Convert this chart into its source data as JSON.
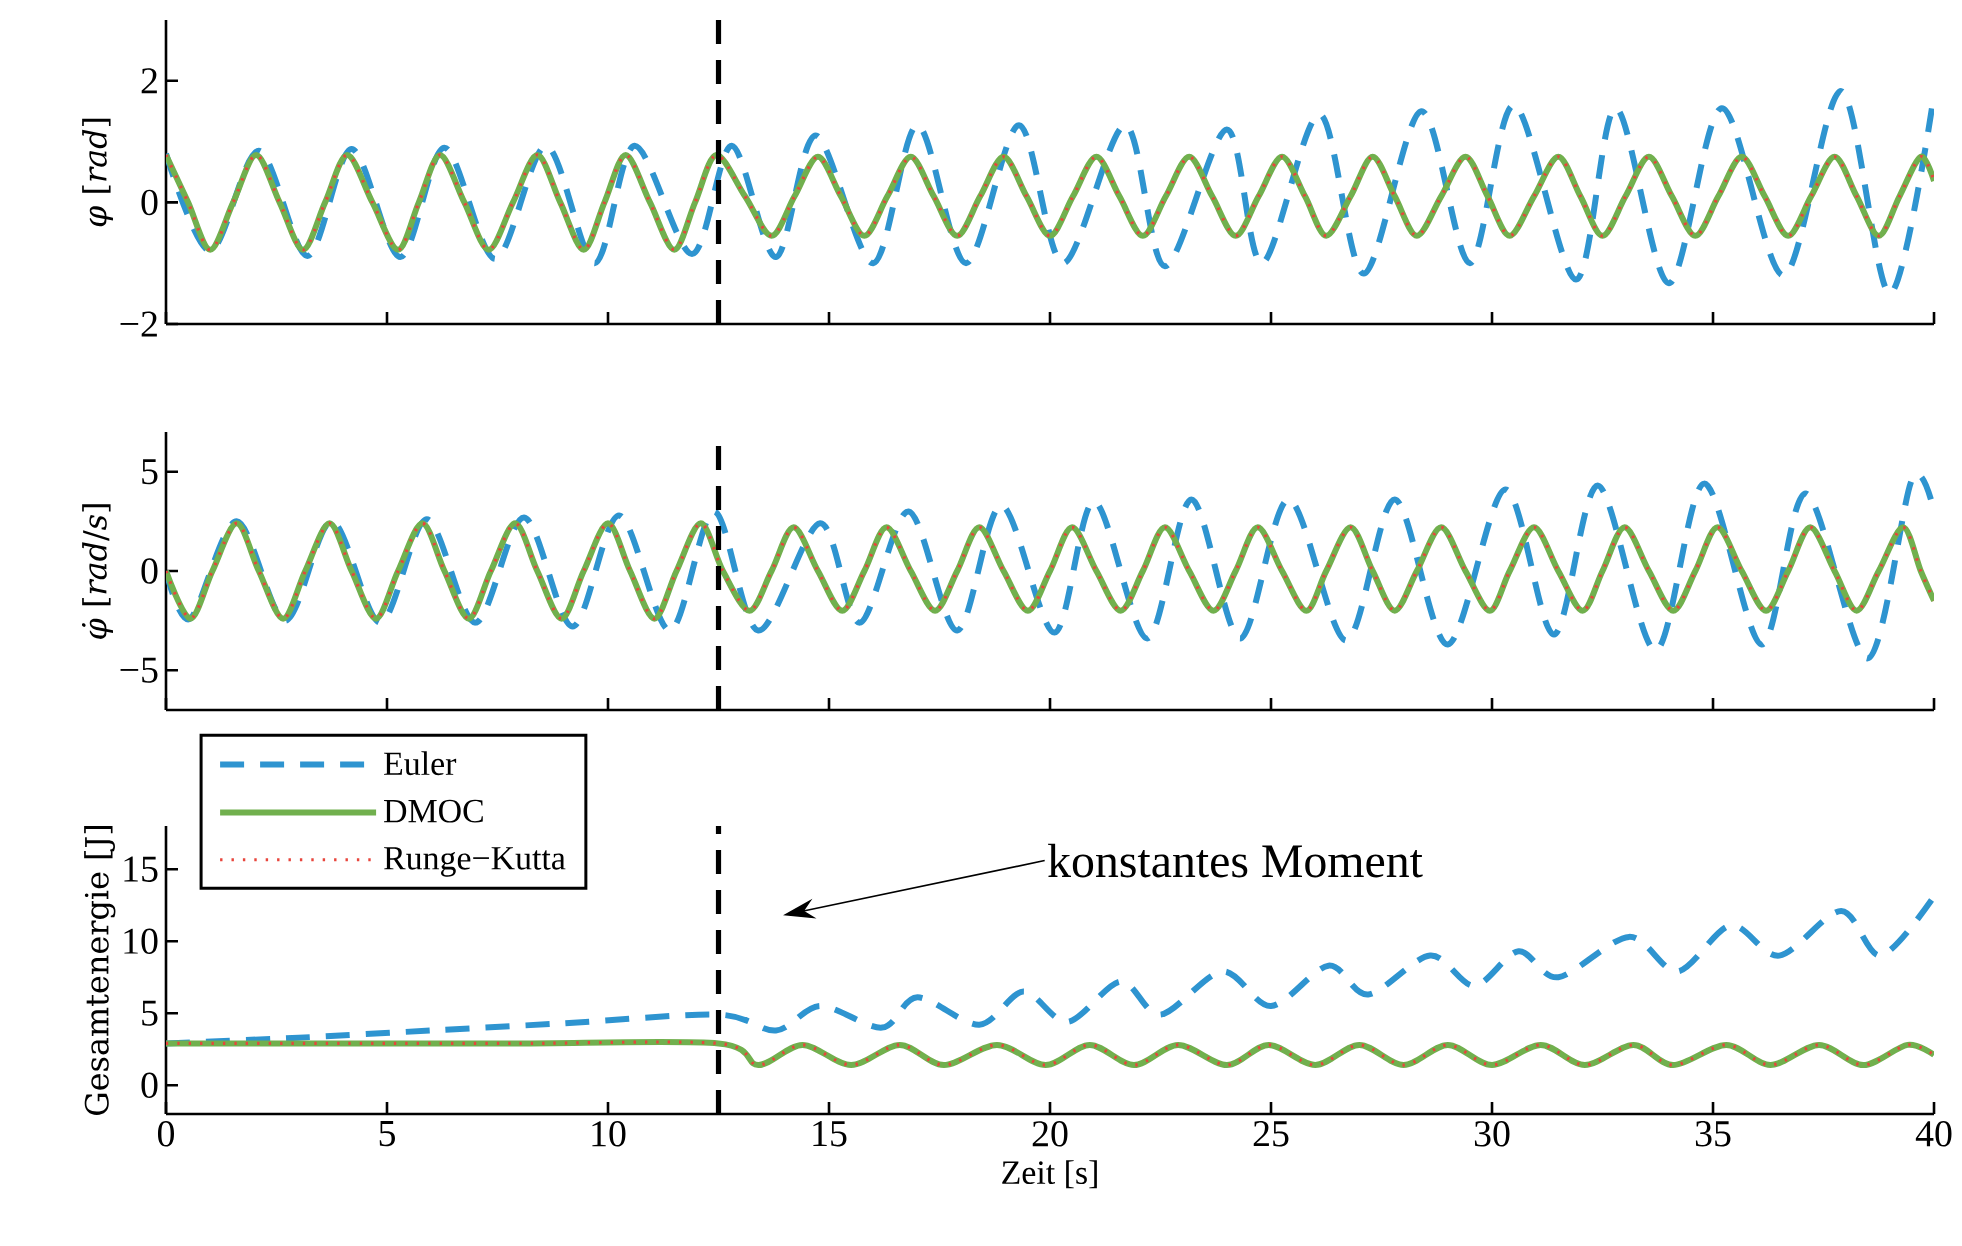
{
  "chart_data": [
    {
      "type": "line",
      "ylabel": "*φ* [*rad*]",
      "xlim": [
        0,
        40
      ],
      "xticks": [
        0,
        5,
        10,
        15,
        20,
        25,
        30,
        35,
        40
      ],
      "ylim": [
        -2,
        3
      ],
      "yticks": [
        {
          "value": -2,
          "label": "−2"
        },
        0,
        2
      ],
      "tick_labels": "y",
      "ref_lines": [
        {
          "axis": "x",
          "value": 12.5,
          "color": "#000000",
          "line_style": "dashed"
        }
      ],
      "series": [
        {
          "color": "#2e94d0",
          "line_style": "dashed",
          "x": [
            0,
            1.0,
            2.1,
            3.2,
            4.2,
            5.3,
            6.3,
            7.45,
            8.6,
            9.7,
            10.6,
            11.9,
            12.8,
            13.8,
            14.7,
            16.0,
            17.0,
            18.1,
            19.3,
            20.3,
            21.7,
            22.6,
            24.0,
            24.8,
            26.1,
            27.1,
            28.4,
            29.5,
            30.5,
            31.9,
            32.8,
            34.0,
            35.2,
            36.6,
            37.9,
            39.0,
            40
          ],
          "values": [
            0.8,
            -0.8,
            0.85,
            -0.88,
            0.88,
            -0.9,
            0.9,
            -0.93,
            0.93,
            -1.0,
            0.93,
            -0.85,
            0.93,
            -0.9,
            1.1,
            -1.0,
            1.27,
            -1.0,
            1.27,
            -1.0,
            1.27,
            -1.05,
            1.2,
            -1.0,
            1.45,
            -1.17,
            1.5,
            -1.0,
            1.6,
            -1.27,
            1.55,
            -1.33,
            1.55,
            -1.2,
            1.83,
            -1.5,
            1.77
          ]
        },
        {
          "color": "#71b04e",
          "line_style": "solid",
          "x": [
            0,
            0.5,
            1.0,
            1.52,
            2.04,
            2.57,
            3.1,
            3.6,
            4.1,
            4.67,
            5.25,
            5.72,
            6.2,
            6.75,
            7.3,
            7.85,
            8.4,
            8.92,
            9.45,
            9.92,
            10.4,
            10.95,
            11.5,
            11.97,
            12.45,
            13.1,
            13.7,
            14.22,
            14.75,
            15.27,
            15.8,
            16.32,
            16.85,
            17.37,
            17.9,
            18.42,
            18.95,
            19.47,
            20.0,
            20.52,
            21.05,
            21.57,
            22.1,
            22.62,
            23.15,
            23.67,
            24.2,
            24.72,
            25.25,
            25.77,
            26.25,
            26.8,
            27.3,
            27.8,
            28.3,
            28.85,
            29.4,
            29.9,
            30.4,
            30.95,
            31.5,
            32.0,
            32.5,
            33.02,
            33.55,
            34.07,
            34.6,
            35.12,
            35.65,
            36.17,
            36.7,
            37.22,
            37.75,
            38.25,
            38.75,
            39.22,
            39.7,
            40
          ],
          "values": [
            0.78,
            0,
            -0.78,
            0,
            0.78,
            0,
            -0.78,
            0,
            0.78,
            0,
            -0.78,
            0,
            0.78,
            0,
            -0.78,
            0,
            0.78,
            0,
            -0.78,
            0,
            0.78,
            0,
            -0.78,
            0,
            0.78,
            0.1,
            -0.55,
            0.1,
            0.75,
            0.1,
            -0.55,
            0.1,
            0.75,
            0.1,
            -0.55,
            0.1,
            0.75,
            0.1,
            -0.55,
            0.1,
            0.75,
            0.1,
            -0.55,
            0.1,
            0.75,
            0.1,
            -0.55,
            0.1,
            0.75,
            0.1,
            -0.55,
            0.1,
            0.75,
            0.1,
            -0.55,
            0.1,
            0.75,
            0.1,
            -0.55,
            0.1,
            0.75,
            0.1,
            -0.55,
            0.1,
            0.75,
            0.1,
            -0.55,
            0.1,
            0.75,
            0.1,
            -0.55,
            0.1,
            0.75,
            0.1,
            -0.55,
            0.1,
            0.75,
            0.35
          ]
        },
        {
          "color": "#e8453c",
          "line_style": "dotted",
          "x": [
            0,
            0.5,
            1.0,
            1.52,
            2.04,
            2.57,
            3.1,
            3.6,
            4.1,
            4.67,
            5.25,
            5.72,
            6.2,
            6.75,
            7.3,
            7.85,
            8.4,
            8.92,
            9.45,
            9.92,
            10.4,
            10.95,
            11.5,
            11.97,
            12.45,
            13.1,
            13.7,
            14.22,
            14.75,
            15.27,
            15.8,
            16.32,
            16.85,
            17.37,
            17.9,
            18.42,
            18.95,
            19.47,
            20.0,
            20.52,
            21.05,
            21.57,
            22.1,
            22.62,
            23.15,
            23.67,
            24.2,
            24.72,
            25.25,
            25.77,
            26.25,
            26.8,
            27.3,
            27.8,
            28.3,
            28.85,
            29.4,
            29.9,
            30.4,
            30.95,
            31.5,
            32.0,
            32.5,
            33.02,
            33.55,
            34.07,
            34.6,
            35.12,
            35.65,
            36.17,
            36.7,
            37.22,
            37.75,
            38.25,
            38.75,
            39.22,
            39.7,
            40
          ],
          "values": [
            0.78,
            0,
            -0.78,
            0,
            0.78,
            0,
            -0.78,
            0,
            0.78,
            0,
            -0.78,
            0,
            0.78,
            0,
            -0.78,
            0,
            0.78,
            0,
            -0.78,
            0,
            0.78,
            0,
            -0.78,
            0,
            0.78,
            0.1,
            -0.55,
            0.1,
            0.75,
            0.1,
            -0.55,
            0.1,
            0.75,
            0.1,
            -0.55,
            0.1,
            0.75,
            0.1,
            -0.55,
            0.1,
            0.75,
            0.1,
            -0.55,
            0.1,
            0.75,
            0.1,
            -0.55,
            0.1,
            0.75,
            0.1,
            -0.55,
            0.1,
            0.75,
            0.1,
            -0.55,
            0.1,
            0.75,
            0.1,
            -0.55,
            0.1,
            0.75,
            0.1,
            -0.55,
            0.1,
            0.75,
            0.1,
            -0.55,
            0.1,
            0.75,
            0.1,
            -0.55,
            0.1,
            0.75,
            0.1,
            -0.55,
            0.1,
            0.75,
            0.35
          ]
        }
      ]
    },
    {
      "type": "line",
      "ylabel": "*φ̇* [*rad*/*s*]",
      "xlim": [
        0,
        40
      ],
      "xticks": [
        0,
        5,
        10,
        15,
        20,
        25,
        30,
        35,
        40
      ],
      "ylim": [
        -7,
        7
      ],
      "yticks": [
        {
          "value": -5,
          "label": "−5"
        },
        0,
        5
      ],
      "tick_labels": "y",
      "ref_lines": [
        {
          "axis": "x",
          "value": 12.5,
          "color": "#000000",
          "line_style": "dashed"
        }
      ],
      "series": [
        {
          "color": "#2e94d0",
          "line_style": "dashed",
          "x": [
            0,
            0.55,
            1.6,
            2.7,
            3.75,
            4.85,
            5.9,
            7.0,
            8.1,
            9.2,
            10.25,
            11.4,
            12.4,
            13.4,
            14.8,
            15.7,
            16.8,
            17.9,
            18.9,
            20.1,
            21.0,
            22.2,
            23.2,
            24.3,
            25.4,
            26.7,
            27.8,
            29.0,
            30.3,
            31.4,
            32.4,
            33.7,
            34.8,
            36.1,
            37.1,
            38.5,
            39.5,
            40
          ],
          "values": [
            0,
            -2.4,
            2.5,
            -2.5,
            2.5,
            -2.6,
            2.6,
            -2.6,
            2.7,
            -2.8,
            2.8,
            -3.0,
            3.0,
            -3.0,
            2.4,
            -2.6,
            3.0,
            -3.0,
            3.3,
            -3.1,
            3.5,
            -3.4,
            3.6,
            -3.4,
            3.6,
            -3.5,
            3.6,
            -3.7,
            4.1,
            -3.2,
            4.3,
            -4.0,
            4.4,
            -3.7,
            3.9,
            -4.4,
            4.6,
            3.0
          ]
        },
        {
          "color": "#71b04e",
          "line_style": "solid",
          "x": [
            0,
            0.55,
            1.05,
            1.6,
            2.1,
            2.65,
            3.15,
            3.7,
            4.2,
            4.75,
            5.25,
            5.8,
            6.3,
            6.85,
            7.35,
            7.9,
            8.4,
            8.95,
            9.45,
            10.0,
            10.5,
            11.05,
            11.55,
            12.1,
            12.6,
            13.2,
            13.7,
            14.2,
            14.75,
            15.3,
            15.8,
            16.3,
            16.85,
            17.4,
            17.9,
            18.4,
            18.95,
            19.5,
            20.0,
            20.5,
            21.05,
            21.6,
            22.1,
            22.6,
            23.15,
            23.7,
            24.2,
            24.7,
            25.25,
            25.8,
            26.25,
            26.8,
            27.3,
            27.8,
            28.3,
            28.85,
            29.4,
            29.95,
            30.4,
            30.95,
            31.5,
            32.05,
            32.5,
            33.0,
            33.55,
            34.1,
            34.6,
            35.1,
            35.65,
            36.2,
            36.7,
            37.2,
            37.75,
            38.25,
            38.75,
            39.3,
            39.7,
            40
          ],
          "values": [
            0,
            -2.4,
            0,
            2.4,
            0,
            -2.4,
            0,
            2.4,
            0,
            -2.4,
            0,
            2.4,
            0,
            -2.4,
            0,
            2.4,
            0,
            -2.4,
            0,
            2.4,
            0,
            -2.4,
            0,
            2.4,
            0,
            -2.0,
            0,
            2.2,
            0,
            -2.0,
            0,
            2.2,
            0,
            -2.0,
            0,
            2.2,
            0,
            -2.0,
            0,
            2.2,
            0,
            -2.0,
            0,
            2.2,
            0,
            -2.0,
            0,
            2.2,
            0,
            -2.0,
            0,
            2.2,
            0,
            -2.0,
            0,
            2.2,
            0,
            -2.0,
            0,
            2.2,
            0,
            -2.0,
            0,
            2.2,
            0,
            -2.0,
            0,
            2.2,
            0,
            -2.0,
            0,
            2.2,
            0,
            -2.0,
            0,
            2.2,
            0,
            -1.5
          ]
        },
        {
          "color": "#e8453c",
          "line_style": "dotted",
          "x": [
            0,
            0.55,
            1.05,
            1.6,
            2.1,
            2.65,
            3.15,
            3.7,
            4.2,
            4.75,
            5.25,
            5.8,
            6.3,
            6.85,
            7.35,
            7.9,
            8.4,
            8.95,
            9.45,
            10.0,
            10.5,
            11.05,
            11.55,
            12.1,
            12.6,
            13.2,
            13.7,
            14.2,
            14.75,
            15.3,
            15.8,
            16.3,
            16.85,
            17.4,
            17.9,
            18.4,
            18.95,
            19.5,
            20.0,
            20.5,
            21.05,
            21.6,
            22.1,
            22.6,
            23.15,
            23.7,
            24.2,
            24.7,
            25.25,
            25.8,
            26.25,
            26.8,
            27.3,
            27.8,
            28.3,
            28.85,
            29.4,
            29.95,
            30.4,
            30.95,
            31.5,
            32.05,
            32.5,
            33.0,
            33.55,
            34.1,
            34.6,
            35.1,
            35.65,
            36.2,
            36.7,
            37.2,
            37.75,
            38.25,
            38.75,
            39.3,
            39.7,
            40
          ],
          "values": [
            0,
            -2.4,
            0,
            2.4,
            0,
            -2.4,
            0,
            2.4,
            0,
            -2.4,
            0,
            2.4,
            0,
            -2.4,
            0,
            2.4,
            0,
            -2.4,
            0,
            2.4,
            0,
            -2.4,
            0,
            2.4,
            0,
            -2.0,
            0,
            2.2,
            0,
            -2.0,
            0,
            2.2,
            0,
            -2.0,
            0,
            2.2,
            0,
            -2.0,
            0,
            2.2,
            0,
            -2.0,
            0,
            2.2,
            0,
            -2.0,
            0,
            2.2,
            0,
            -2.0,
            0,
            2.2,
            0,
            -2.0,
            0,
            2.2,
            0,
            -2.0,
            0,
            2.2,
            0,
            -2.0,
            0,
            2.2,
            0,
            -2.0,
            0,
            2.2,
            0,
            -2.0,
            0,
            2.2,
            0,
            -2.0,
            0,
            2.2,
            0,
            -1.5
          ]
        }
      ]
    },
    {
      "type": "line",
      "xlabel": "Zeit [s]",
      "ylabel": "Gesamtenergie [J]",
      "xlim": [
        0,
        40
      ],
      "xticks": [
        0,
        5,
        10,
        15,
        20,
        25,
        30,
        35,
        40
      ],
      "ylim": [
        -2,
        18
      ],
      "yticks": [
        0,
        5,
        10,
        15
      ],
      "legend": "top left",
      "ref_lines": [
        {
          "axis": "x",
          "value": 12.5,
          "color": "#000000",
          "line_style": "dashed"
        }
      ],
      "annotations": [
        "konstantes Moment"
      ],
      "series": [
        {
          "name": "Euler",
          "color": "#2e94d0",
          "line_style": "dashed",
          "x": [
            0,
            3,
            6,
            9,
            12.5,
            13.8,
            14.8,
            16.2,
            17.0,
            18.4,
            19.4,
            20.4,
            21.6,
            22.5,
            23.9,
            25.0,
            26.3,
            27.2,
            28.6,
            29.6,
            30.6,
            31.5,
            33.1,
            34.2,
            35.4,
            36.5,
            37.9,
            38.8,
            40
          ],
          "values": [
            2.9,
            3.3,
            3.8,
            4.3,
            4.9,
            3.8,
            5.5,
            4.0,
            6.1,
            4.2,
            6.5,
            4.4,
            7.2,
            4.9,
            7.9,
            5.5,
            8.3,
            6.3,
            9.0,
            6.9,
            9.3,
            7.5,
            10.3,
            7.9,
            11.1,
            9.0,
            12.1,
            9.0,
            13.1
          ]
        },
        {
          "name": "DMOC",
          "color": "#71b04e",
          "line_style": "solid",
          "x": [
            0,
            4,
            8,
            12.5,
            13.4,
            14.4,
            15.5,
            16.6,
            17.6,
            18.8,
            19.9,
            20.9,
            21.9,
            22.9,
            24.0,
            24.95,
            26.0,
            27.0,
            28.0,
            29.0,
            30.0,
            31.1,
            32.1,
            33.2,
            34.1,
            35.3,
            36.3,
            37.4,
            38.4,
            39.4,
            40
          ],
          "values": [
            2.9,
            2.9,
            2.9,
            2.9,
            1.4,
            2.8,
            1.4,
            2.8,
            1.4,
            2.8,
            1.4,
            2.8,
            1.4,
            2.8,
            1.4,
            2.8,
            1.4,
            2.8,
            1.4,
            2.8,
            1.4,
            2.8,
            1.4,
            2.8,
            1.4,
            2.8,
            1.4,
            2.8,
            1.4,
            2.8,
            2.1
          ]
        },
        {
          "name": "Runge−Kutta",
          "color": "#e8453c",
          "line_style": "dotted",
          "x": [
            0,
            4,
            8,
            12.5,
            13.4,
            14.4,
            15.5,
            16.6,
            17.6,
            18.8,
            19.9,
            20.9,
            21.9,
            22.9,
            24.0,
            24.95,
            26.0,
            27.0,
            28.0,
            29.0,
            30.0,
            31.1,
            32.1,
            33.2,
            34.1,
            35.3,
            36.3,
            37.4,
            38.4,
            39.4,
            40
          ],
          "values": [
            2.9,
            2.9,
            2.9,
            2.9,
            1.4,
            2.8,
            1.4,
            2.8,
            1.4,
            2.8,
            1.4,
            2.8,
            1.4,
            2.8,
            1.4,
            2.8,
            1.4,
            2.8,
            1.4,
            2.8,
            1.4,
            2.8,
            1.4,
            2.8,
            1.4,
            2.8,
            1.4,
            2.8,
            1.4,
            2.8,
            2.1
          ]
        }
      ]
    }
  ]
}
